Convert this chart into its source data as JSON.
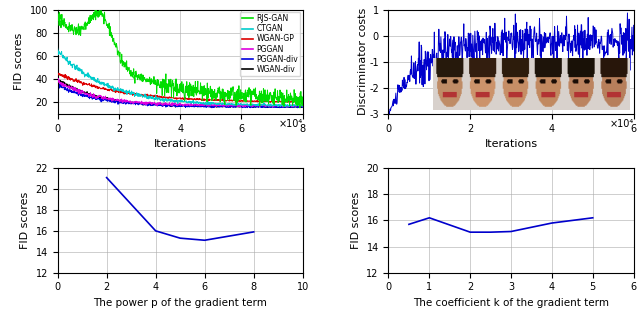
{
  "top_left": {
    "xlabel": "Iterations",
    "ylabel": "FID scores",
    "xlim": [
      0,
      80000
    ],
    "ylim": [
      10,
      100
    ],
    "xticks": [
      0,
      20000,
      40000,
      60000,
      80000
    ],
    "xtick_labels": [
      "0",
      "2",
      "4",
      "6",
      "8"
    ],
    "yticks": [
      20,
      40,
      60,
      80,
      100
    ],
    "ytick_labels": [
      "20",
      "40",
      "60",
      "80",
      "100"
    ],
    "xscale_label": "×10⁴",
    "legend": [
      "RJS-GAN",
      "CTGAN",
      "WGAN-GP",
      "PGGAN",
      "PGGAN-div",
      "WGAN-div"
    ],
    "colors": [
      "#00dd00",
      "#00cccc",
      "#dd0000",
      "#dd00dd",
      "#0000dd",
      "#000000"
    ],
    "linewidths": [
      0.8,
      0.8,
      0.8,
      0.8,
      0.8,
      0.8
    ]
  },
  "top_right": {
    "xlabel": "Iterations",
    "ylabel": "Discriminator costs",
    "xlim": [
      0,
      60000
    ],
    "ylim": [
      -3,
      1
    ],
    "xticks": [
      0,
      20000,
      40000,
      60000
    ],
    "xtick_labels": [
      "0",
      "2",
      "4",
      "6"
    ],
    "yticks": [
      -3,
      -2,
      -1,
      0,
      1
    ],
    "ytick_labels": [
      "-3",
      "-2",
      "-1",
      "0",
      "1"
    ],
    "xscale_label": "×10⁴",
    "color": "#0000cc"
  },
  "bot_left": {
    "xlabel": "The power p of the gradient term",
    "ylabel": "FID scores",
    "xlim": [
      0,
      10
    ],
    "ylim": [
      12,
      22
    ],
    "xticks": [
      0,
      2,
      4,
      6,
      8,
      10
    ],
    "yticks": [
      12,
      14,
      16,
      18,
      20,
      22
    ],
    "x": [
      2,
      4,
      5,
      6,
      8
    ],
    "y": [
      21.1,
      16.0,
      15.3,
      15.1,
      15.9
    ],
    "color": "#0000cc"
  },
  "bot_right": {
    "xlabel": "The coefficient k of the gradient term",
    "ylabel": "FID scores",
    "xlim": [
      0,
      6
    ],
    "ylim": [
      12,
      20
    ],
    "xticks": [
      0,
      1,
      2,
      3,
      4,
      5,
      6
    ],
    "yticks": [
      12,
      14,
      16,
      18,
      20
    ],
    "x": [
      0.5,
      1.0,
      2.0,
      2.5,
      3.0,
      4.0,
      5.0
    ],
    "y": [
      15.7,
      16.2,
      15.1,
      15.1,
      15.15,
      15.8,
      16.2
    ],
    "color": "#0000cc"
  }
}
